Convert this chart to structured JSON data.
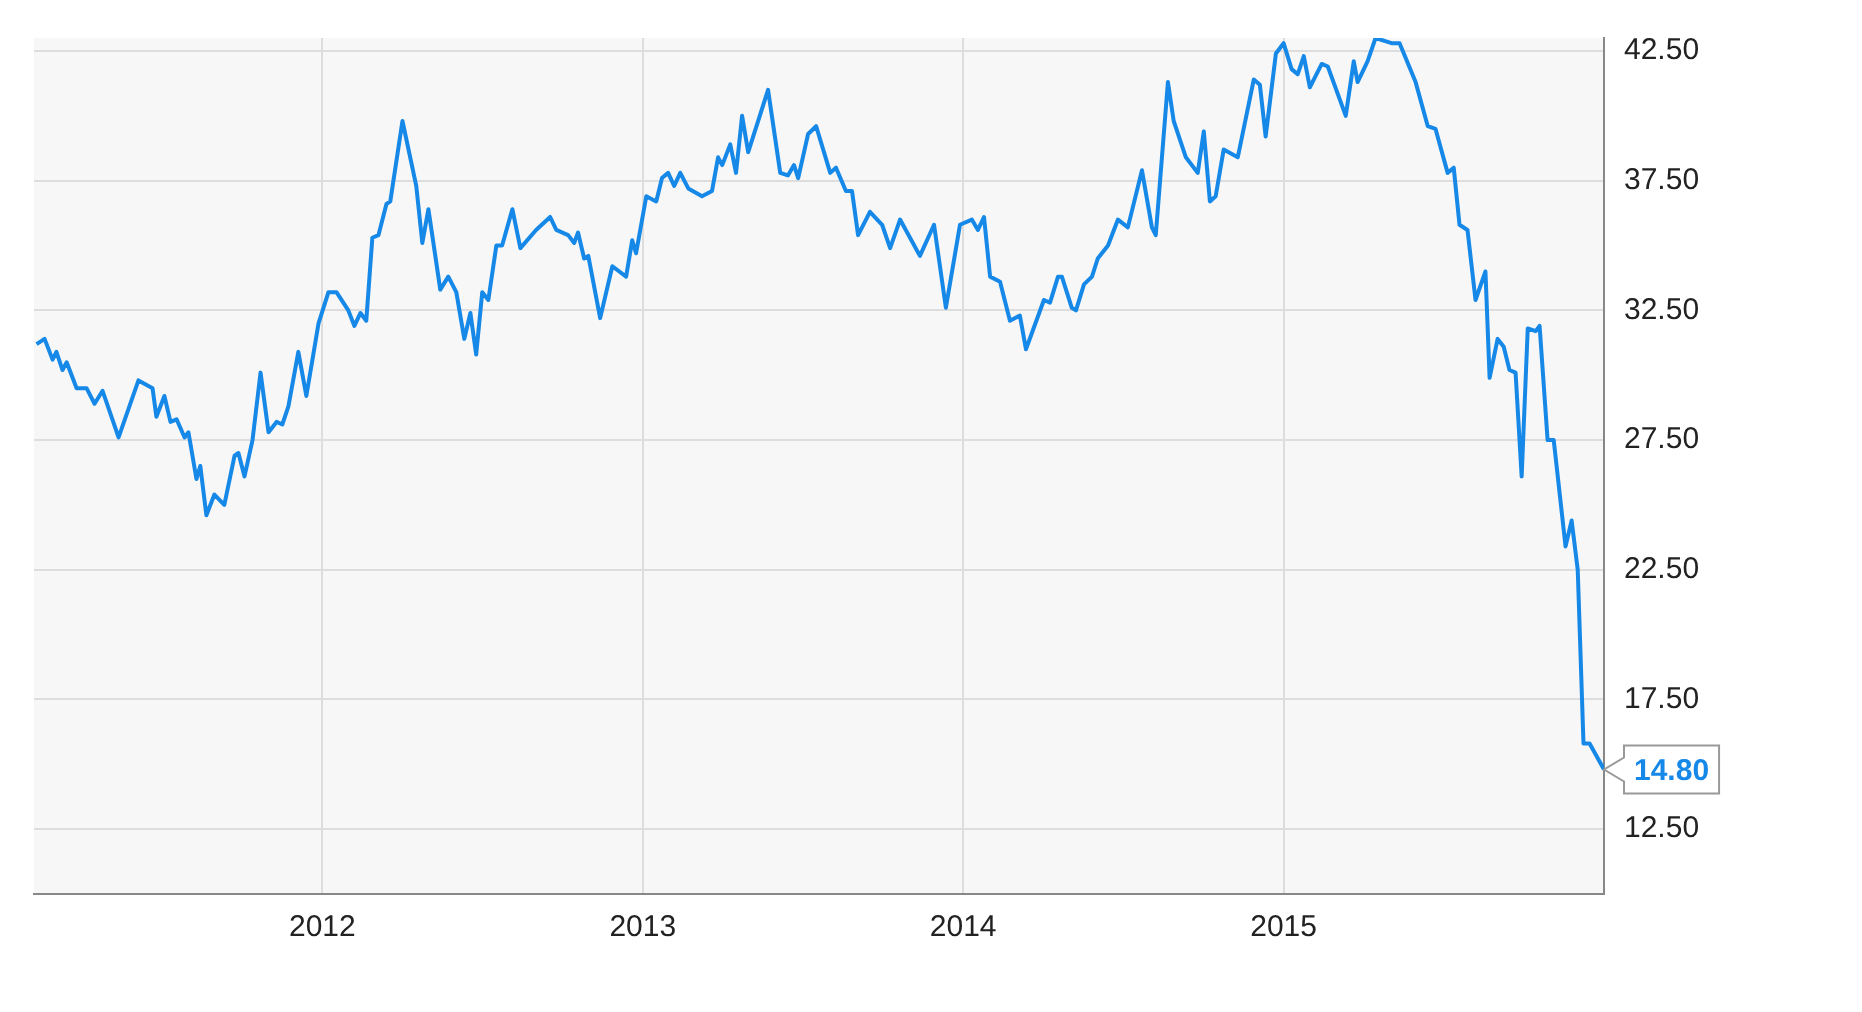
{
  "chart_data": {
    "type": "line",
    "x": [
      2011.108,
      2011.133,
      2011.158,
      2011.17,
      2011.189,
      2011.202,
      2011.233,
      2011.264,
      2011.289,
      2011.314,
      2011.364,
      2011.426,
      2011.47,
      2011.482,
      2011.507,
      2011.526,
      2011.545,
      2011.57,
      2011.582,
      2011.607,
      2011.619,
      2011.638,
      2011.663,
      2011.694,
      2011.726,
      2011.738,
      2011.757,
      2011.782,
      2011.807,
      2011.832,
      2011.857,
      2011.875,
      2011.894,
      2011.925,
      2011.95,
      2011.988,
      2012.019,
      2012.044,
      2012.081,
      2012.1,
      2012.119,
      2012.137,
      2012.156,
      2012.175,
      2012.2,
      2012.212,
      2012.25,
      2012.293,
      2012.312,
      2012.331,
      2012.368,
      2012.393,
      2012.418,
      2012.443,
      2012.462,
      2012.48,
      2012.499,
      2012.518,
      2012.543,
      2012.561,
      2012.593,
      2012.618,
      2012.667,
      2012.711,
      2012.73,
      2012.767,
      2012.786,
      2012.798,
      2012.817,
      2012.83,
      2012.867,
      2012.905,
      2012.948,
      2012.967,
      2012.979,
      2013.011,
      2013.042,
      2013.06,
      2013.079,
      2013.098,
      2013.117,
      2013.142,
      2013.185,
      2013.216,
      2013.235,
      2013.248,
      2013.273,
      2013.291,
      2013.31,
      2013.329,
      2013.391,
      2013.429,
      2013.453,
      2013.472,
      2013.485,
      2013.516,
      2013.541,
      2013.585,
      2013.603,
      2013.634,
      2013.653,
      2013.672,
      2013.709,
      2013.747,
      2013.772,
      2013.803,
      2013.865,
      2013.909,
      2013.946,
      2013.99,
      2014.027,
      2014.046,
      2014.065,
      2014.084,
      2014.115,
      2014.146,
      2014.177,
      2014.196,
      2014.252,
      2014.271,
      2014.296,
      2014.308,
      2014.339,
      2014.352,
      2014.377,
      2014.402,
      2014.42,
      2014.452,
      2014.483,
      2014.514,
      2014.558,
      2014.589,
      2014.601,
      2014.639,
      2014.657,
      2014.695,
      2014.732,
      2014.751,
      2014.77,
      2014.788,
      2014.813,
      2014.857,
      2014.907,
      2014.926,
      2014.944,
      2014.976,
      2015.0,
      2015.025,
      2015.044,
      2015.063,
      2015.082,
      2015.119,
      2015.138,
      2015.194,
      2015.219,
      2015.231,
      2015.262,
      2015.287,
      2015.337,
      2015.362,
      2015.412,
      2015.45,
      2015.474,
      2015.512,
      2015.531,
      2015.549,
      2015.574,
      2015.599,
      2015.63,
      2015.643,
      2015.668,
      2015.687,
      2015.705,
      2015.724,
      2015.743,
      2015.762,
      2015.787,
      2015.799,
      2015.824,
      2015.843,
      2015.88,
      2015.899,
      2015.918,
      2015.936,
      2015.955,
      2016.0
    ],
    "series": [
      {
        "color": "#1588e8",
        "values": [
          31.2,
          31.4,
          30.6,
          30.9,
          30.2,
          30.5,
          29.5,
          29.5,
          28.9,
          29.4,
          27.6,
          29.8,
          29.5,
          28.4,
          29.2,
          28.2,
          28.3,
          27.6,
          27.8,
          26.0,
          26.5,
          24.6,
          25.4,
          25.0,
          26.9,
          27.0,
          26.1,
          27.5,
          30.1,
          27.8,
          28.2,
          28.1,
          28.8,
          30.9,
          29.2,
          32.0,
          33.2,
          33.2,
          32.5,
          31.9,
          32.4,
          32.1,
          35.3,
          35.4,
          36.6,
          36.7,
          39.8,
          37.3,
          35.1,
          36.4,
          33.3,
          33.8,
          33.2,
          31.4,
          32.4,
          30.8,
          33.2,
          32.9,
          35.0,
          35.0,
          36.4,
          34.9,
          35.6,
          36.1,
          35.6,
          35.4,
          35.1,
          35.5,
          34.5,
          34.6,
          32.2,
          34.2,
          33.8,
          35.2,
          34.7,
          36.9,
          36.7,
          37.6,
          37.8,
          37.3,
          37.8,
          37.2,
          36.9,
          37.1,
          38.4,
          38.1,
          38.9,
          37.8,
          40.0,
          38.6,
          41.0,
          37.8,
          37.7,
          38.1,
          37.6,
          39.3,
          39.6,
          37.8,
          38.0,
          37.1,
          37.1,
          35.4,
          36.3,
          35.8,
          34.9,
          36.0,
          34.6,
          35.8,
          32.6,
          35.8,
          36.0,
          35.6,
          36.1,
          33.8,
          33.6,
          32.1,
          32.3,
          31.0,
          32.9,
          32.8,
          33.8,
          33.8,
          32.6,
          32.5,
          33.5,
          33.8,
          34.5,
          35.0,
          36.0,
          35.7,
          37.9,
          35.7,
          35.4,
          41.3,
          39.8,
          38.4,
          37.8,
          39.4,
          36.7,
          36.9,
          38.7,
          38.4,
          41.4,
          41.2,
          39.2,
          42.4,
          42.8,
          41.8,
          41.6,
          42.3,
          41.1,
          42.0,
          41.9,
          40.0,
          42.1,
          41.3,
          42.1,
          43.0,
          42.8,
          42.8,
          41.3,
          39.6,
          39.5,
          37.8,
          38.0,
          35.8,
          35.6,
          32.9,
          34.0,
          29.9,
          31.4,
          31.1,
          30.2,
          30.1,
          26.1,
          31.8,
          31.7,
          31.9,
          27.5,
          27.5,
          23.4,
          24.4,
          22.5,
          15.8,
          15.8,
          14.8
        ]
      }
    ],
    "xlim": [
      2011.1,
      2016.0
    ],
    "xticks": [
      2012,
      2013,
      2014,
      2015
    ],
    "ylim": [
      10,
      43
    ],
    "yticks": [
      {
        "value": 12.5,
        "label": "12.50"
      },
      {
        "value": 17.5,
        "label": "17.50"
      },
      {
        "value": 22.5,
        "label": "22.50"
      },
      {
        "value": 27.5,
        "label": "27.50"
      },
      {
        "value": 32.5,
        "label": "32.50"
      },
      {
        "value": 37.5,
        "label": "37.50"
      },
      {
        "value": 42.5,
        "label": "42.50"
      }
    ],
    "annotations": [
      {
        "text": "14.80",
        "x": 2016.0,
        "y": 14.8
      }
    ],
    "grid": true,
    "legend": false,
    "marker": "none",
    "line_style": "solid"
  }
}
